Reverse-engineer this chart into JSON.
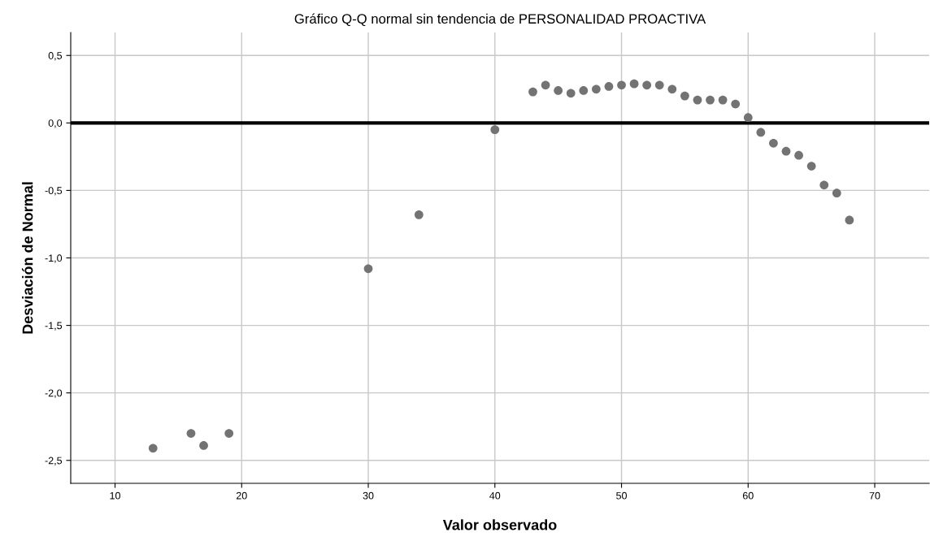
{
  "chart_data": {
    "type": "scatter",
    "title": "Gráfico Q-Q normal sin tendencia de PERSONALIDAD PROACTIVA",
    "xlabel": "Valor observado",
    "ylabel": "Desviación de Normal",
    "series": [
      {
        "color": "#737373",
        "x": [
          13,
          16,
          17,
          19,
          30,
          34,
          40,
          43,
          44,
          45,
          46,
          47,
          48,
          49,
          50,
          51,
          52,
          53,
          54,
          55,
          56,
          57,
          58,
          59,
          60,
          61,
          62,
          63,
          64,
          65,
          66,
          67,
          68
        ],
        "values": [
          -2.41,
          -2.3,
          -2.39,
          -2.3,
          -1.08,
          -0.68,
          -0.05,
          0.23,
          0.28,
          0.24,
          0.22,
          0.24,
          0.25,
          0.27,
          0.28,
          0.29,
          0.28,
          0.28,
          0.25,
          0.2,
          0.17,
          0.17,
          0.17,
          0.14,
          0.04,
          -0.07,
          -0.15,
          -0.21,
          -0.24,
          -0.32,
          -0.46,
          -0.52,
          -0.72
        ]
      }
    ],
    "xlim": [
      6.5,
      74.3
    ],
    "ylim": [
      -2.67,
      0.67
    ],
    "xticks": [
      10,
      20,
      30,
      40,
      50,
      60,
      70
    ],
    "yticks": [
      {
        "value": -2.5,
        "label": "-2,5"
      },
      {
        "value": -2.0,
        "label": "-2,0"
      },
      {
        "value": -1.5,
        "label": "-1,5"
      },
      {
        "value": -1.0,
        "label": "-1,0"
      },
      {
        "value": -0.5,
        "label": "-0,5"
      },
      {
        "value": 0.0,
        "label": "0,0"
      },
      {
        "value": 0.5,
        "label": "0,5"
      }
    ],
    "ref_lines": [
      {
        "axis": "y",
        "value": 0,
        "color": "#000000"
      }
    ],
    "grid": true,
    "marker": "circle"
  }
}
